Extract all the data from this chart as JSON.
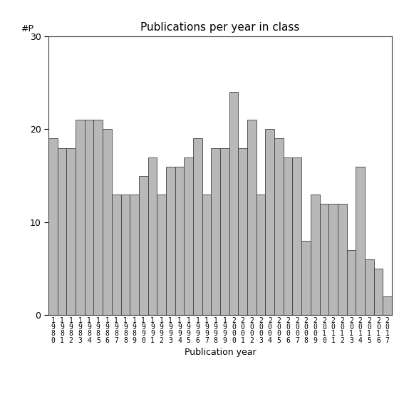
{
  "title": "Publications per year in class",
  "xlabel": "Publication year",
  "ylabel": "#P",
  "years": [
    1980,
    1981,
    1982,
    1983,
    1984,
    1985,
    1986,
    1987,
    1988,
    1989,
    1990,
    1991,
    1992,
    1993,
    1994,
    1995,
    1996,
    1997,
    1998,
    1999,
    2000,
    2001,
    2002,
    2003,
    2004,
    2005,
    2006,
    2007,
    2008,
    2009,
    2010,
    2011,
    2012,
    2013,
    2014,
    2015,
    2016,
    2017
  ],
  "values": [
    19,
    18,
    18,
    21,
    21,
    21,
    20,
    13,
    13,
    13,
    15,
    17,
    13,
    16,
    16,
    17,
    19,
    13,
    18,
    18,
    24,
    18,
    21,
    13,
    20,
    19,
    17,
    17,
    8,
    13,
    12,
    12,
    12,
    7,
    16,
    6,
    5,
    2
  ],
  "bar_color": "#b8b8b8",
  "bar_edge_color": "#404040",
  "ylim": [
    0,
    30
  ],
  "yticks": [
    0,
    10,
    20,
    30
  ],
  "bg_color": "#ffffff",
  "title_fontsize": 11,
  "axis_fontsize": 9,
  "tick_fontsize": 9,
  "xtick_fontsize": 7
}
